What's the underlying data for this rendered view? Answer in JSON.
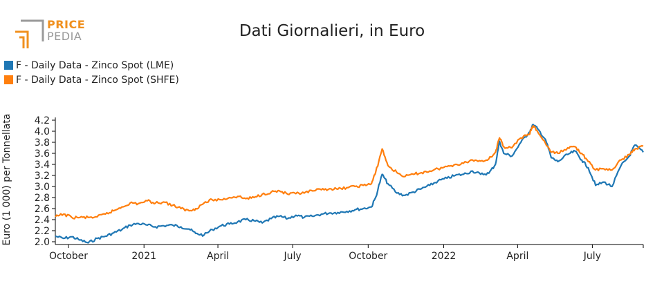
{
  "header": {
    "logo_top": "PRICE",
    "logo_bottom": "PEDIA",
    "title": "Dati Giornalieri, in Euro"
  },
  "colors": {
    "lme": "#1f77b4",
    "shfe": "#ff7f0e",
    "logo_orange": "#f0901e",
    "logo_gray": "#9a9a9a"
  },
  "chart_data": {
    "type": "line",
    "title": "Dati Giornalieri, in Euro",
    "ylabel": "Euro (1 000) per Tonnellata",
    "xlabel": "",
    "xlim": [
      "2020-09-15",
      "2022-09-01"
    ],
    "ylim": [
      1.95,
      4.25
    ],
    "yticks": [
      2.0,
      2.2,
      2.4,
      2.6,
      2.8,
      3.0,
      3.2,
      3.4,
      3.6,
      3.8,
      4.0,
      4.2
    ],
    "yticklabels": [
      "2.0",
      "2.2",
      "2.4",
      "2.6",
      "2.8",
      "3.0",
      "3.2",
      "3.4",
      "3.6",
      "3.8",
      "4.0",
      "4.2"
    ],
    "xticks": [
      "2020-10-01",
      "2021-01-01",
      "2021-04-01",
      "2021-07-01",
      "2021-10-01",
      "2022-01-01",
      "2022-04-01",
      "2022-07-01"
    ],
    "xticklabels": [
      "October",
      "2021",
      "April",
      "July",
      "October",
      "2022",
      "April",
      "July"
    ],
    "legend": "top-left",
    "grid": false,
    "series": [
      {
        "name": "F - Daily Data - Zinco Spot (LME)",
        "color": "#1f77b4",
        "points": [
          [
            "2020-09-15",
            2.1
          ],
          [
            "2020-09-25",
            2.06
          ],
          [
            "2020-10-05",
            2.09
          ],
          [
            "2020-10-15",
            2.03
          ],
          [
            "2020-10-25",
            1.98
          ],
          [
            "2020-11-05",
            2.06
          ],
          [
            "2020-11-15",
            2.1
          ],
          [
            "2020-11-25",
            2.16
          ],
          [
            "2020-12-05",
            2.22
          ],
          [
            "2020-12-15",
            2.3
          ],
          [
            "2020-12-25",
            2.33
          ],
          [
            "2021-01-05",
            2.3
          ],
          [
            "2021-01-15",
            2.27
          ],
          [
            "2021-01-25",
            2.29
          ],
          [
            "2021-02-05",
            2.3
          ],
          [
            "2021-02-15",
            2.27
          ],
          [
            "2021-02-25",
            2.23
          ],
          [
            "2021-03-05",
            2.15
          ],
          [
            "2021-03-15",
            2.12
          ],
          [
            "2021-03-25",
            2.22
          ],
          [
            "2021-04-05",
            2.29
          ],
          [
            "2021-04-15",
            2.32
          ],
          [
            "2021-04-25",
            2.36
          ],
          [
            "2021-05-05",
            2.4
          ],
          [
            "2021-05-15",
            2.38
          ],
          [
            "2021-05-25",
            2.34
          ],
          [
            "2021-06-05",
            2.42
          ],
          [
            "2021-06-15",
            2.46
          ],
          [
            "2021-06-25",
            2.42
          ],
          [
            "2021-07-05",
            2.48
          ],
          [
            "2021-07-15",
            2.44
          ],
          [
            "2021-07-25",
            2.46
          ],
          [
            "2021-08-05",
            2.5
          ],
          [
            "2021-08-15",
            2.52
          ],
          [
            "2021-08-25",
            2.53
          ],
          [
            "2021-09-05",
            2.55
          ],
          [
            "2021-09-15",
            2.58
          ],
          [
            "2021-09-25",
            2.6
          ],
          [
            "2021-10-05",
            2.63
          ],
          [
            "2021-10-10",
            2.8
          ],
          [
            "2021-10-18",
            3.22
          ],
          [
            "2021-10-25",
            3.05
          ],
          [
            "2021-11-05",
            2.88
          ],
          [
            "2021-11-15",
            2.84
          ],
          [
            "2021-11-25",
            2.9
          ],
          [
            "2021-12-05",
            2.96
          ],
          [
            "2021-12-15",
            3.02
          ],
          [
            "2021-12-25",
            3.1
          ],
          [
            "2022-01-05",
            3.15
          ],
          [
            "2022-01-15",
            3.2
          ],
          [
            "2022-01-25",
            3.22
          ],
          [
            "2022-02-05",
            3.28
          ],
          [
            "2022-02-15",
            3.22
          ],
          [
            "2022-02-25",
            3.24
          ],
          [
            "2022-03-05",
            3.4
          ],
          [
            "2022-03-10",
            3.82
          ],
          [
            "2022-03-15",
            3.6
          ],
          [
            "2022-03-25",
            3.55
          ],
          [
            "2022-04-05",
            3.8
          ],
          [
            "2022-04-15",
            3.98
          ],
          [
            "2022-04-20",
            4.12
          ],
          [
            "2022-04-25",
            4.05
          ],
          [
            "2022-05-05",
            3.85
          ],
          [
            "2022-05-12",
            3.52
          ],
          [
            "2022-05-20",
            3.45
          ],
          [
            "2022-06-01",
            3.58
          ],
          [
            "2022-06-10",
            3.64
          ],
          [
            "2022-06-18",
            3.48
          ],
          [
            "2022-06-26",
            3.34
          ],
          [
            "2022-07-05",
            3.02
          ],
          [
            "2022-07-15",
            3.08
          ],
          [
            "2022-07-25",
            3.0
          ],
          [
            "2022-08-05",
            3.38
          ],
          [
            "2022-08-15",
            3.55
          ],
          [
            "2022-08-22",
            3.75
          ],
          [
            "2022-09-01",
            3.62
          ]
        ]
      },
      {
        "name": "F - Daily Data - Zinco Spot (SHFE)",
        "color": "#ff7f0e",
        "points": [
          [
            "2020-09-15",
            2.45
          ],
          [
            "2020-09-25",
            2.5
          ],
          [
            "2020-10-05",
            2.44
          ],
          [
            "2020-10-15",
            2.44
          ],
          [
            "2020-10-25",
            2.44
          ],
          [
            "2020-11-05",
            2.45
          ],
          [
            "2020-11-15",
            2.5
          ],
          [
            "2020-11-25",
            2.56
          ],
          [
            "2020-12-05",
            2.63
          ],
          [
            "2020-12-15",
            2.7
          ],
          [
            "2020-12-25",
            2.69
          ],
          [
            "2021-01-05",
            2.74
          ],
          [
            "2021-01-15",
            2.7
          ],
          [
            "2021-01-25",
            2.72
          ],
          [
            "2021-02-05",
            2.66
          ],
          [
            "2021-02-15",
            2.6
          ],
          [
            "2021-02-25",
            2.56
          ],
          [
            "2021-03-05",
            2.6
          ],
          [
            "2021-03-15",
            2.7
          ],
          [
            "2021-03-25",
            2.76
          ],
          [
            "2021-04-05",
            2.76
          ],
          [
            "2021-04-15",
            2.8
          ],
          [
            "2021-04-25",
            2.82
          ],
          [
            "2021-05-05",
            2.78
          ],
          [
            "2021-05-15",
            2.8
          ],
          [
            "2021-05-25",
            2.86
          ],
          [
            "2021-06-05",
            2.9
          ],
          [
            "2021-06-15",
            2.92
          ],
          [
            "2021-06-25",
            2.86
          ],
          [
            "2021-07-05",
            2.87
          ],
          [
            "2021-07-15",
            2.88
          ],
          [
            "2021-07-25",
            2.92
          ],
          [
            "2021-08-05",
            2.94
          ],
          [
            "2021-08-15",
            2.96
          ],
          [
            "2021-08-25",
            2.95
          ],
          [
            "2021-09-05",
            2.98
          ],
          [
            "2021-09-15",
            3.0
          ],
          [
            "2021-09-25",
            3.02
          ],
          [
            "2021-10-05",
            3.05
          ],
          [
            "2021-10-10",
            3.25
          ],
          [
            "2021-10-18",
            3.68
          ],
          [
            "2021-10-25",
            3.38
          ],
          [
            "2021-11-05",
            3.25
          ],
          [
            "2021-11-15",
            3.18
          ],
          [
            "2021-11-25",
            3.22
          ],
          [
            "2021-12-05",
            3.25
          ],
          [
            "2021-12-15",
            3.28
          ],
          [
            "2021-12-25",
            3.32
          ],
          [
            "2022-01-05",
            3.36
          ],
          [
            "2022-01-15",
            3.4
          ],
          [
            "2022-01-25",
            3.42
          ],
          [
            "2022-02-05",
            3.48
          ],
          [
            "2022-02-15",
            3.46
          ],
          [
            "2022-02-25",
            3.5
          ],
          [
            "2022-03-05",
            3.62
          ],
          [
            "2022-03-10",
            3.88
          ],
          [
            "2022-03-15",
            3.72
          ],
          [
            "2022-03-25",
            3.7
          ],
          [
            "2022-04-05",
            3.88
          ],
          [
            "2022-04-15",
            3.94
          ],
          [
            "2022-04-20",
            4.1
          ],
          [
            "2022-04-25",
            4.0
          ],
          [
            "2022-05-05",
            3.78
          ],
          [
            "2022-05-12",
            3.62
          ],
          [
            "2022-05-20",
            3.6
          ],
          [
            "2022-06-01",
            3.7
          ],
          [
            "2022-06-10",
            3.72
          ],
          [
            "2022-06-18",
            3.6
          ],
          [
            "2022-06-26",
            3.45
          ],
          [
            "2022-07-05",
            3.3
          ],
          [
            "2022-07-15",
            3.32
          ],
          [
            "2022-07-25",
            3.3
          ],
          [
            "2022-08-05",
            3.48
          ],
          [
            "2022-08-15",
            3.58
          ],
          [
            "2022-08-22",
            3.68
          ],
          [
            "2022-09-01",
            3.73
          ]
        ]
      }
    ]
  }
}
